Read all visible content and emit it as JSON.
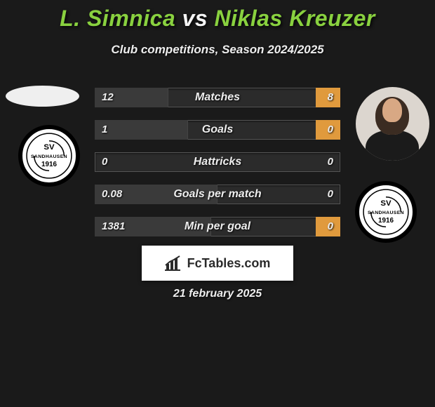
{
  "title_parts": {
    "p1": "L. Simnica",
    "vs": "vs",
    "p2": "Niklas Kreuzer"
  },
  "subtitle": "Club competitions, Season 2024/2025",
  "rows": [
    {
      "label": "Matches",
      "left": "12",
      "right": "8",
      "left_bar_pct": 60,
      "right_bar_pct": 20
    },
    {
      "label": "Goals",
      "left": "1",
      "right": "0",
      "left_bar_pct": 76,
      "right_bar_pct": 20
    },
    {
      "label": "Hattricks",
      "left": "0",
      "right": "0",
      "left_bar_pct": 0,
      "right_bar_pct": 0
    },
    {
      "label": "Goals per match",
      "left": "0.08",
      "right": "0",
      "left_bar_pct": 100,
      "right_bar_pct": 0
    },
    {
      "label": "Min per goal",
      "left": "1381",
      "right": "0",
      "left_bar_pct": 95,
      "right_bar_pct": 20
    }
  ],
  "club": {
    "name": "Sandhausen",
    "top_text": "SV",
    "mid_text": "SANDHAUSEN",
    "bottom_text": "1916",
    "ring_color_outer": "#000000",
    "ring_color_inner": "#ffffff",
    "text_color": "#000000"
  },
  "brand": "FcTables.com",
  "date": "21 february 2025",
  "colors": {
    "bg": "#1a1a1a",
    "bar_left": "#3a3a3a",
    "bar_right": "#e09a3d",
    "row_bg": "#2b2b2b",
    "border": "#555555",
    "text": "#eeeeee",
    "accent": "#89d13f",
    "brand_bg": "#ffffff",
    "brand_text": "#2a2a2a"
  }
}
